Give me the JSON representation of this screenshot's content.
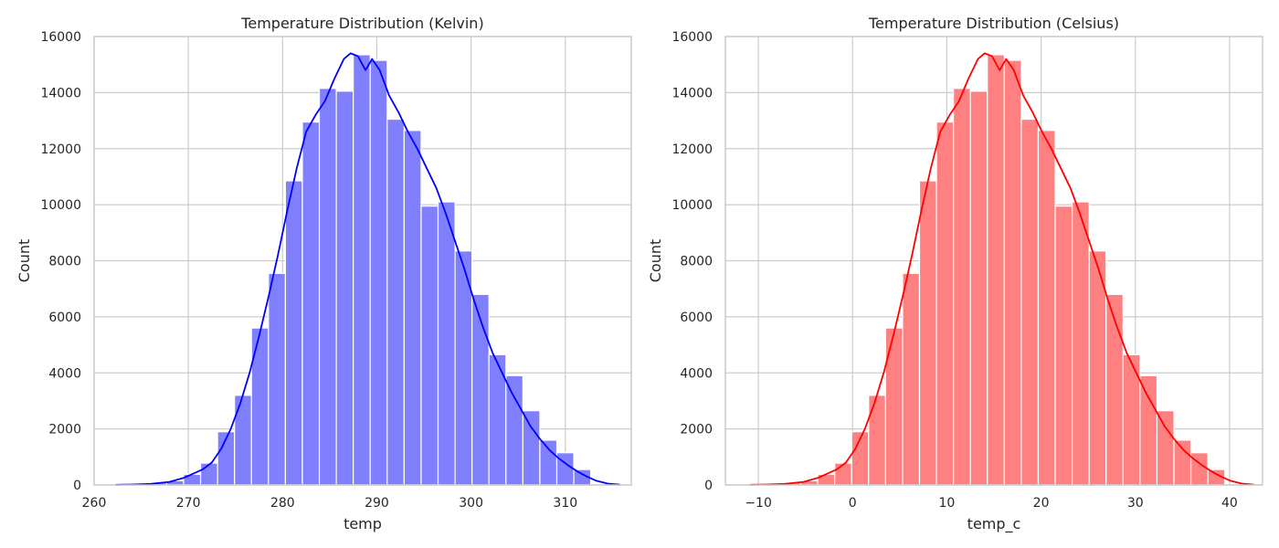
{
  "chart_data": [
    {
      "type": "bar",
      "title": "Temperature Distribution (Kelvin)",
      "xlabel": "temp",
      "ylabel": "Count",
      "xlim": [
        260,
        317
      ],
      "ylim": [
        0,
        16000
      ],
      "xticks": [
        260,
        270,
        280,
        290,
        300,
        310
      ],
      "yticks": [
        0,
        2000,
        4000,
        6000,
        8000,
        10000,
        12000,
        14000,
        16000
      ],
      "bar_color": "#8080ff",
      "line_color": "#0000ff",
      "grid": true,
      "bins": [
        {
          "x0": 262.3,
          "x1": 264.1,
          "count": 20
        },
        {
          "x0": 264.1,
          "x1": 265.9,
          "count": 40
        },
        {
          "x0": 265.9,
          "x1": 267.7,
          "count": 80
        },
        {
          "x0": 267.7,
          "x1": 269.5,
          "count": 150
        },
        {
          "x0": 269.5,
          "x1": 271.3,
          "count": 380
        },
        {
          "x0": 271.3,
          "x1": 273.1,
          "count": 780
        },
        {
          "x0": 273.1,
          "x1": 274.9,
          "count": 1900
        },
        {
          "x0": 274.9,
          "x1": 276.7,
          "count": 3200
        },
        {
          "x0": 276.7,
          "x1": 278.5,
          "count": 5600
        },
        {
          "x0": 278.5,
          "x1": 280.3,
          "count": 7550
        },
        {
          "x0": 280.3,
          "x1": 282.1,
          "count": 10850
        },
        {
          "x0": 282.1,
          "x1": 283.9,
          "count": 12950
        },
        {
          "x0": 283.9,
          "x1": 285.7,
          "count": 14150
        },
        {
          "x0": 285.7,
          "x1": 287.5,
          "count": 14050
        },
        {
          "x0": 287.5,
          "x1": 289.3,
          "count": 15350
        },
        {
          "x0": 289.3,
          "x1": 291.1,
          "count": 15150
        },
        {
          "x0": 291.1,
          "x1": 292.9,
          "count": 13050
        },
        {
          "x0": 292.9,
          "x1": 294.7,
          "count": 12650
        },
        {
          "x0": 294.7,
          "x1": 296.5,
          "count": 9950
        },
        {
          "x0": 296.5,
          "x1": 298.3,
          "count": 10100
        },
        {
          "x0": 298.3,
          "x1": 300.1,
          "count": 8350
        },
        {
          "x0": 300.1,
          "x1": 301.9,
          "count": 6800
        },
        {
          "x0": 301.9,
          "x1": 303.7,
          "count": 4650
        },
        {
          "x0": 303.7,
          "x1": 305.5,
          "count": 3900
        },
        {
          "x0": 305.5,
          "x1": 307.3,
          "count": 2650
        },
        {
          "x0": 307.3,
          "x1": 309.1,
          "count": 1600
        },
        {
          "x0": 309.1,
          "x1": 310.9,
          "count": 1150
        },
        {
          "x0": 310.9,
          "x1": 312.7,
          "count": 550
        }
      ],
      "kde": [
        {
          "x": 262.3,
          "y": 5
        },
        {
          "x": 264,
          "y": 15
        },
        {
          "x": 266,
          "y": 40
        },
        {
          "x": 268,
          "y": 110
        },
        {
          "x": 269.5,
          "y": 250
        },
        {
          "x": 270.5,
          "y": 400
        },
        {
          "x": 271.5,
          "y": 550
        },
        {
          "x": 272.5,
          "y": 800
        },
        {
          "x": 273.5,
          "y": 1300
        },
        {
          "x": 274.5,
          "y": 2000
        },
        {
          "x": 275.5,
          "y": 2900
        },
        {
          "x": 276.5,
          "y": 4000
        },
        {
          "x": 277.5,
          "y": 5300
        },
        {
          "x": 278.5,
          "y": 6700
        },
        {
          "x": 279.5,
          "y": 8200
        },
        {
          "x": 280.5,
          "y": 9800
        },
        {
          "x": 281.5,
          "y": 11300
        },
        {
          "x": 282.5,
          "y": 12600
        },
        {
          "x": 283.5,
          "y": 13200
        },
        {
          "x": 284.5,
          "y": 13700
        },
        {
          "x": 285.5,
          "y": 14500
        },
        {
          "x": 286.5,
          "y": 15200
        },
        {
          "x": 287.2,
          "y": 15400
        },
        {
          "x": 288,
          "y": 15300
        },
        {
          "x": 288.8,
          "y": 14800
        },
        {
          "x": 289.5,
          "y": 15200
        },
        {
          "x": 290.3,
          "y": 14800
        },
        {
          "x": 291.3,
          "y": 13900
        },
        {
          "x": 292.3,
          "y": 13300
        },
        {
          "x": 293.3,
          "y": 12600
        },
        {
          "x": 294.3,
          "y": 12000
        },
        {
          "x": 295.3,
          "y": 11300
        },
        {
          "x": 296.3,
          "y": 10600
        },
        {
          "x": 297.3,
          "y": 9700
        },
        {
          "x": 298.3,
          "y": 8700
        },
        {
          "x": 299.3,
          "y": 7700
        },
        {
          "x": 300.3,
          "y": 6600
        },
        {
          "x": 301.3,
          "y": 5600
        },
        {
          "x": 302.3,
          "y": 4700
        },
        {
          "x": 303.3,
          "y": 4000
        },
        {
          "x": 304.3,
          "y": 3300
        },
        {
          "x": 305.3,
          "y": 2700
        },
        {
          "x": 306.3,
          "y": 2100
        },
        {
          "x": 307.3,
          "y": 1650
        },
        {
          "x": 308.3,
          "y": 1250
        },
        {
          "x": 309.3,
          "y": 950
        },
        {
          "x": 310.3,
          "y": 700
        },
        {
          "x": 311.3,
          "y": 480
        },
        {
          "x": 312.3,
          "y": 300
        },
        {
          "x": 313.3,
          "y": 150
        },
        {
          "x": 314.5,
          "y": 50
        },
        {
          "x": 315.8,
          "y": 10
        }
      ]
    },
    {
      "type": "bar",
      "title": "Temperature Distribution (Celsius)",
      "xlabel": "temp_c",
      "ylabel": "Count",
      "xlim": [
        -13.5,
        43.5
      ],
      "ylim": [
        0,
        16000
      ],
      "xticks": [
        -10,
        0,
        10,
        20,
        30,
        40
      ],
      "yticks": [
        0,
        2000,
        4000,
        6000,
        8000,
        10000,
        12000,
        14000,
        16000
      ],
      "bar_color": "#ff8080",
      "line_color": "#ff0000",
      "grid": true,
      "bins": [
        {
          "x0": -10.9,
          "x1": -9.1,
          "count": 20
        },
        {
          "x0": -9.1,
          "x1": -7.3,
          "count": 40
        },
        {
          "x0": -7.3,
          "x1": -5.5,
          "count": 80
        },
        {
          "x0": -5.5,
          "x1": -3.7,
          "count": 150
        },
        {
          "x0": -3.7,
          "x1": -1.9,
          "count": 380
        },
        {
          "x0": -1.9,
          "x1": -0.1,
          "count": 780
        },
        {
          "x0": -0.1,
          "x1": 1.7,
          "count": 1900
        },
        {
          "x0": 1.7,
          "x1": 3.5,
          "count": 3200
        },
        {
          "x0": 3.5,
          "x1": 5.3,
          "count": 5600
        },
        {
          "x0": 5.3,
          "x1": 7.1,
          "count": 7550
        },
        {
          "x0": 7.1,
          "x1": 8.9,
          "count": 10850
        },
        {
          "x0": 8.9,
          "x1": 10.7,
          "count": 12950
        },
        {
          "x0": 10.7,
          "x1": 12.5,
          "count": 14150
        },
        {
          "x0": 12.5,
          "x1": 14.3,
          "count": 14050
        },
        {
          "x0": 14.3,
          "x1": 16.1,
          "count": 15350
        },
        {
          "x0": 16.1,
          "x1": 17.9,
          "count": 15150
        },
        {
          "x0": 17.9,
          "x1": 19.7,
          "count": 13050
        },
        {
          "x0": 19.7,
          "x1": 21.5,
          "count": 12650
        },
        {
          "x0": 21.5,
          "x1": 23.3,
          "count": 9950
        },
        {
          "x0": 23.3,
          "x1": 25.1,
          "count": 10100
        },
        {
          "x0": 25.1,
          "x1": 26.9,
          "count": 8350
        },
        {
          "x0": 26.9,
          "x1": 28.7,
          "count": 6800
        },
        {
          "x0": 28.7,
          "x1": 30.5,
          "count": 4650
        },
        {
          "x0": 30.5,
          "x1": 32.3,
          "count": 3900
        },
        {
          "x0": 32.3,
          "x1": 34.1,
          "count": 2650
        },
        {
          "x0": 34.1,
          "x1": 35.9,
          "count": 1600
        },
        {
          "x0": 35.9,
          "x1": 37.7,
          "count": 1150
        },
        {
          "x0": 37.7,
          "x1": 39.5,
          "count": 550
        }
      ],
      "kde": [
        {
          "x": -10.9,
          "y": 5
        },
        {
          "x": -9.2,
          "y": 15
        },
        {
          "x": -7.2,
          "y": 40
        },
        {
          "x": -5.2,
          "y": 110
        },
        {
          "x": -3.7,
          "y": 250
        },
        {
          "x": -2.7,
          "y": 400
        },
        {
          "x": -1.7,
          "y": 550
        },
        {
          "x": -0.7,
          "y": 800
        },
        {
          "x": 0.3,
          "y": 1300
        },
        {
          "x": 1.3,
          "y": 2000
        },
        {
          "x": 2.3,
          "y": 2900
        },
        {
          "x": 3.3,
          "y": 4000
        },
        {
          "x": 4.3,
          "y": 5300
        },
        {
          "x": 5.3,
          "y": 6700
        },
        {
          "x": 6.3,
          "y": 8200
        },
        {
          "x": 7.3,
          "y": 9800
        },
        {
          "x": 8.3,
          "y": 11300
        },
        {
          "x": 9.3,
          "y": 12600
        },
        {
          "x": 10.3,
          "y": 13200
        },
        {
          "x": 11.3,
          "y": 13700
        },
        {
          "x": 12.3,
          "y": 14500
        },
        {
          "x": 13.3,
          "y": 15200
        },
        {
          "x": 14,
          "y": 15400
        },
        {
          "x": 14.8,
          "y": 15300
        },
        {
          "x": 15.6,
          "y": 14800
        },
        {
          "x": 16.3,
          "y": 15200
        },
        {
          "x": 17.1,
          "y": 14800
        },
        {
          "x": 18.1,
          "y": 13900
        },
        {
          "x": 19.1,
          "y": 13300
        },
        {
          "x": 20.1,
          "y": 12600
        },
        {
          "x": 21.1,
          "y": 12000
        },
        {
          "x": 22.1,
          "y": 11300
        },
        {
          "x": 23.1,
          "y": 10600
        },
        {
          "x": 24.1,
          "y": 9700
        },
        {
          "x": 25.1,
          "y": 8700
        },
        {
          "x": 26.1,
          "y": 7700
        },
        {
          "x": 27.1,
          "y": 6600
        },
        {
          "x": 28.1,
          "y": 5600
        },
        {
          "x": 29.1,
          "y": 4700
        },
        {
          "x": 30.1,
          "y": 4000
        },
        {
          "x": 31.1,
          "y": 3300
        },
        {
          "x": 32.1,
          "y": 2700
        },
        {
          "x": 33.1,
          "y": 2100
        },
        {
          "x": 34.1,
          "y": 1650
        },
        {
          "x": 35.1,
          "y": 1250
        },
        {
          "x": 36.1,
          "y": 950
        },
        {
          "x": 37.1,
          "y": 700
        },
        {
          "x": 38.1,
          "y": 480
        },
        {
          "x": 39.1,
          "y": 300
        },
        {
          "x": 40.1,
          "y": 150
        },
        {
          "x": 41.3,
          "y": 50
        },
        {
          "x": 42.6,
          "y": 10
        }
      ]
    }
  ]
}
